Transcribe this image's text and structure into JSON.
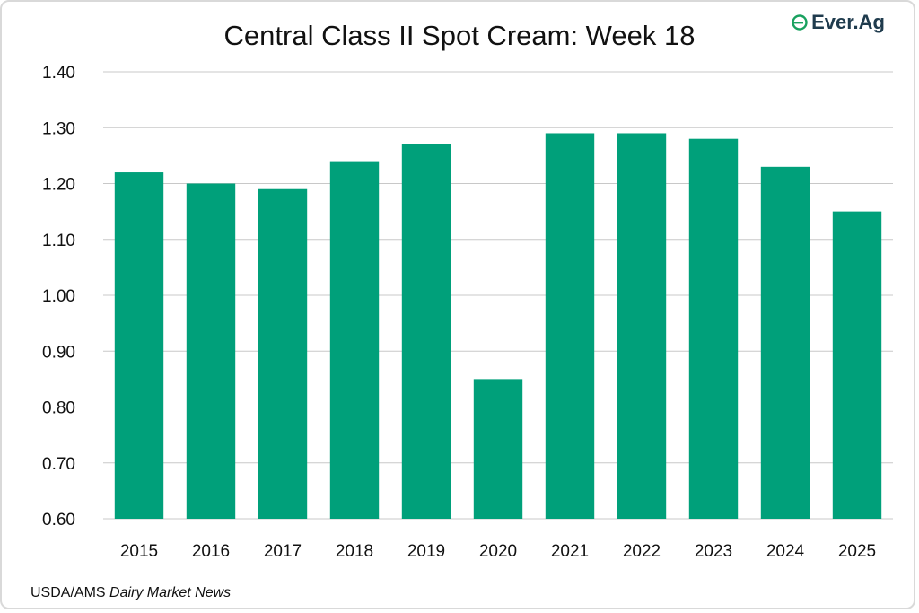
{
  "chart_data": {
    "type": "bar",
    "title": "Central Class II Spot Cream: Week 18",
    "categories": [
      "2015",
      "2016",
      "2017",
      "2018",
      "2019",
      "2020",
      "2021",
      "2022",
      "2023",
      "2024",
      "2025"
    ],
    "values": [
      1.22,
      1.2,
      1.19,
      1.24,
      1.27,
      0.85,
      1.29,
      1.29,
      1.28,
      1.23,
      1.15
    ],
    "yticks": [
      "0.60",
      "0.70",
      "0.80",
      "0.90",
      "1.00",
      "1.10",
      "1.20",
      "1.30",
      "1.40"
    ],
    "ylim": [
      0.6,
      1.4
    ],
    "xlabel": "",
    "ylabel": "",
    "grid": true,
    "legend": "none",
    "bar_color": "#00a07a"
  },
  "source": {
    "prefix": "USDA/AMS ",
    "publication": "Dairy Market News"
  },
  "logo": {
    "text": "Ever.Ag",
    "color": "#1f3b4d",
    "accent": "#19a15f"
  }
}
